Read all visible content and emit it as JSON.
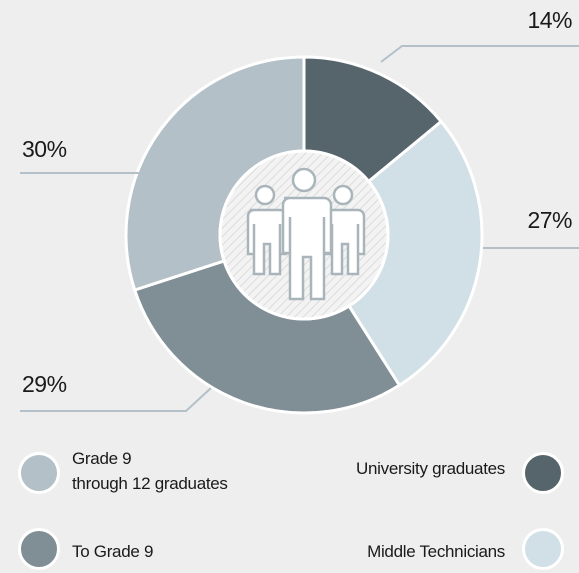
{
  "chart_data": {
    "type": "donut",
    "categories": [
      "University graduates",
      "Middle Technicians",
      "To Grade 9",
      "Grade 9\nthrough 12 graduates"
    ],
    "values": [
      14,
      27,
      29,
      30
    ],
    "value_labels": [
      "14%",
      "27%",
      "29%",
      "30%"
    ],
    "colors": [
      "#56646b",
      "#d1dfe6",
      "#808e95",
      "#b3c0c7"
    ]
  }
}
